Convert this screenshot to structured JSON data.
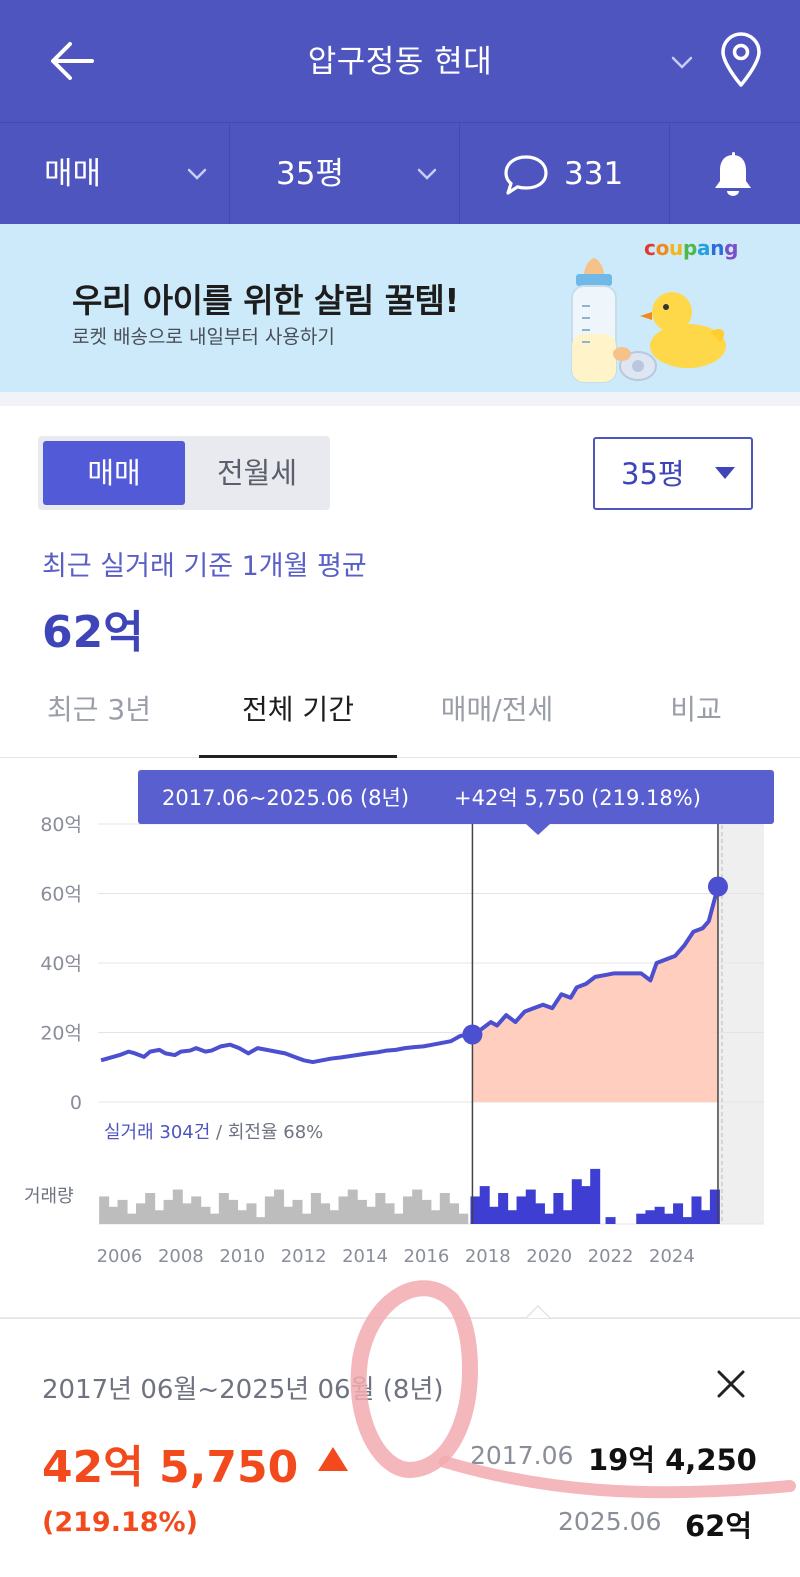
{
  "header": {
    "title": "압구정동 현대",
    "icons": {
      "back": "arrow-left-icon",
      "chevron": "chevron-down-icon",
      "location": "map-pin-icon"
    }
  },
  "filters": {
    "trade_type": "매매",
    "size": "35평",
    "comment_count": "331",
    "icons": {
      "comment": "speech-bubble-icon",
      "bell": "bell-icon"
    }
  },
  "banner": {
    "brand": [
      "c",
      "o",
      "u",
      "p",
      "a",
      "n",
      "g"
    ],
    "brand_colors": [
      "#e03a2f",
      "#f28a1b",
      "#f2b51b",
      "#4fb848",
      "#27a0db",
      "#2b6fd6",
      "#7a4fc8"
    ],
    "title": "우리 아이를 위한 살림 꿀템!",
    "subtitle": "로켓 배송으로 내일부터 사용하기"
  },
  "controls": {
    "segment_active": "매매",
    "segment_inactive": "전월세",
    "size_select": "35평"
  },
  "stats": {
    "avg_label": "최근 실거래 기준 1개월 평균",
    "avg_value": "62억"
  },
  "tabs": [
    {
      "label": "최근 3년",
      "active": false
    },
    {
      "label": "전체 기간",
      "active": true
    },
    {
      "label": "매매/전세",
      "active": false
    },
    {
      "label": "비교",
      "active": false
    }
  ],
  "colors": {
    "brand_primary": "#4e55bf",
    "line": "#4b4fd0",
    "area_fill": "#ffc9b8",
    "volume_selected": "#3e3fd2",
    "volume_other": "#bdbdbd",
    "increase": "#f24a1c"
  },
  "chart_data": {
    "type": "line",
    "tooltip": {
      "range": "2017.06~2025.06 (8년)",
      "change": "+42억 5,750 (219.18%)"
    },
    "y_ticks": [
      "80억",
      "60억",
      "40억",
      "20억",
      "0"
    ],
    "ylim": [
      0,
      80
    ],
    "x_ticks": [
      "2006",
      "2008",
      "2010",
      "2012",
      "2014",
      "2016",
      "2018",
      "2020",
      "2022",
      "2024"
    ],
    "xlim": [
      2005.3,
      2027.0
    ],
    "selected_range": [
      2017.5,
      2025.5
    ],
    "future_shaded_from": 2025.5,
    "volume_label": "거래량",
    "transactions_label": "실거래 304건",
    "turnover_label": " / 회전율 68%",
    "series": [
      {
        "x": [
          2005.4,
          2005.6,
          2006.0,
          2006.3,
          2006.5,
          2006.8,
          2007.0,
          2007.3,
          2007.5,
          2007.8,
          2008.0,
          2008.3,
          2008.5,
          2008.8,
          2009.0,
          2009.3,
          2009.6,
          2009.9,
          2010.2,
          2010.5,
          2010.8,
          2011.1,
          2011.4,
          2011.7,
          2012.0,
          2012.3,
          2012.6,
          2012.9,
          2013.2,
          2013.5,
          2013.8,
          2014.1,
          2014.4,
          2014.7,
          2015.0,
          2015.3,
          2015.6,
          2015.9,
          2016.2,
          2016.5,
          2016.8,
          2017.1,
          2017.3,
          2017.5,
          2017.8,
          2018.1,
          2018.3,
          2018.6,
          2018.9,
          2019.2,
          2019.5,
          2019.8,
          2020.1,
          2020.4,
          2020.7,
          2020.9,
          2021.2,
          2021.5,
          2021.8,
          2022.1,
          2022.4,
          2022.7,
          2023.0,
          2023.3,
          2023.5,
          2023.8,
          2024.1,
          2024.4,
          2024.7,
          2025.0,
          2025.2,
          2025.35,
          2025.5
        ],
        "values": [
          12.0,
          12.5,
          13.5,
          14.5,
          14.0,
          13.0,
          14.5,
          15.0,
          14.0,
          13.5,
          14.5,
          14.8,
          15.5,
          14.5,
          14.8,
          16.0,
          16.5,
          15.5,
          14.0,
          15.5,
          15.0,
          14.5,
          14.0,
          13.0,
          12.0,
          11.5,
          12.0,
          12.5,
          12.8,
          13.2,
          13.6,
          14.0,
          14.3,
          14.8,
          15.0,
          15.5,
          15.8,
          16.0,
          16.5,
          17.0,
          17.5,
          19.0,
          19.3,
          19.4,
          21.0,
          23.0,
          22.0,
          25.0,
          23.0,
          26.0,
          27.0,
          28.0,
          27.0,
          31.0,
          30.0,
          33.0,
          34.0,
          36.0,
          36.5,
          37.0,
          37.0,
          37.0,
          37.0,
          35.0,
          40.0,
          41.0,
          42.0,
          45.0,
          49.0,
          50.0,
          52.0,
          57.0,
          61.9
        ]
      }
    ],
    "highlight_points": [
      {
        "x": 2017.5,
        "value": 19.425
      },
      {
        "x": 2025.5,
        "value": 62.0
      }
    ],
    "volume": {
      "x": [
        2005.5,
        2005.8,
        2006.1,
        2006.4,
        2006.7,
        2007.0,
        2007.3,
        2007.6,
        2007.9,
        2008.2,
        2008.5,
        2008.8,
        2009.1,
        2009.4,
        2009.7,
        2010.0,
        2010.3,
        2010.6,
        2010.9,
        2011.2,
        2011.5,
        2011.8,
        2012.1,
        2012.4,
        2012.7,
        2013.0,
        2013.3,
        2013.6,
        2013.9,
        2014.2,
        2014.5,
        2014.8,
        2015.1,
        2015.4,
        2015.7,
        2016.0,
        2016.3,
        2016.6,
        2016.9,
        2017.2,
        2017.6,
        2017.9,
        2018.2,
        2018.5,
        2018.8,
        2019.1,
        2019.4,
        2019.7,
        2020.0,
        2020.3,
        2020.6,
        2020.9,
        2021.2,
        2021.5,
        2022.0,
        2023.0,
        2023.3,
        2023.6,
        2023.9,
        2024.2,
        2024.5,
        2024.8,
        2025.1,
        2025.4
      ],
      "values": [
        8,
        5,
        7,
        3,
        6,
        9,
        4,
        7,
        10,
        6,
        8,
        5,
        3,
        9,
        7,
        4,
        6,
        2,
        8,
        10,
        5,
        7,
        3,
        9,
        6,
        4,
        8,
        10,
        7,
        5,
        9,
        6,
        3,
        8,
        10,
        7,
        4,
        9,
        6,
        3,
        8,
        11,
        5,
        9,
        4,
        8,
        10,
        6,
        3,
        9,
        4,
        13,
        11,
        16,
        2,
        3,
        4,
        5,
        3,
        6,
        2,
        8,
        4,
        10
      ],
      "max": 18
    }
  },
  "summary": {
    "period": "2017년 06월~2025년 06월 (8년)",
    "change": "42억 5,750",
    "change_pct": "(219.18%)",
    "from_date": "2017.06",
    "from_price": "19억 4,250",
    "to_date": "2025.06",
    "to_price": "62억",
    "icons": {
      "close": "close-icon",
      "trend": "triangle-up-icon"
    }
  }
}
